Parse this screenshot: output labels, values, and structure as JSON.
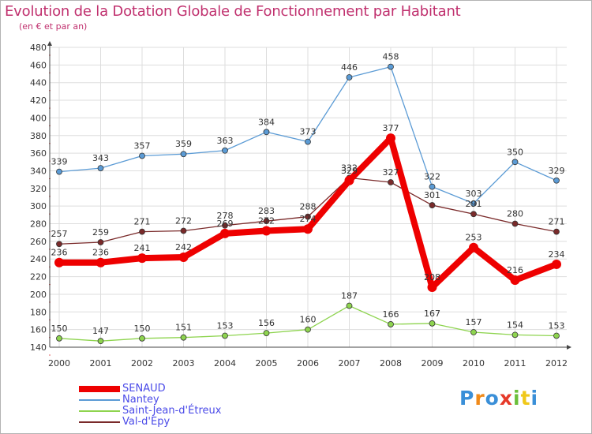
{
  "title": "Evolution de la Dotation Globale de Fonctionnement par Habitant",
  "subtitle": "(en € et par an)",
  "logo_text": "Proxiti",
  "chart_data": {
    "type": "line",
    "categories": [
      "2000",
      "2001",
      "2002",
      "2003",
      "2004",
      "2005",
      "2006",
      "2007",
      "2008",
      "2009",
      "2010",
      "2011",
      "2012"
    ],
    "ylim": [
      140,
      480
    ],
    "yticks": [
      140,
      160,
      180,
      200,
      220,
      240,
      260,
      280,
      300,
      320,
      340,
      360,
      380,
      400,
      420,
      440,
      460,
      480
    ],
    "grid": true,
    "legend_position": "bottom-left",
    "series": [
      {
        "name": "Nantey",
        "color": "#5b9bd5",
        "emphasis": false,
        "values": [
          339,
          343,
          357,
          359,
          363,
          384,
          373,
          446,
          458,
          322,
          303,
          350,
          329
        ]
      },
      {
        "name": "Saint-Jean-d'Étreux",
        "color": "#8ed44f",
        "emphasis": false,
        "values": [
          150,
          147,
          150,
          151,
          153,
          156,
          160,
          187,
          166,
          167,
          157,
          154,
          153
        ]
      },
      {
        "name": "Val-d'Epy",
        "color": "#7a2a2a",
        "emphasis": false,
        "values": [
          257,
          259,
          271,
          272,
          278,
          283,
          288,
          332,
          327,
          301,
          291,
          280,
          271
        ]
      },
      {
        "name": "SENAUD",
        "color": "#ee0000",
        "emphasis": true,
        "values": [
          236,
          236,
          241,
          242,
          269,
          272,
          274,
          329,
          377,
          208,
          253,
          216,
          234
        ]
      }
    ],
    "legend_order": [
      "SENAUD",
      "Nantey",
      "Saint-Jean-d'Étreux",
      "Val-d'Epy"
    ]
  }
}
